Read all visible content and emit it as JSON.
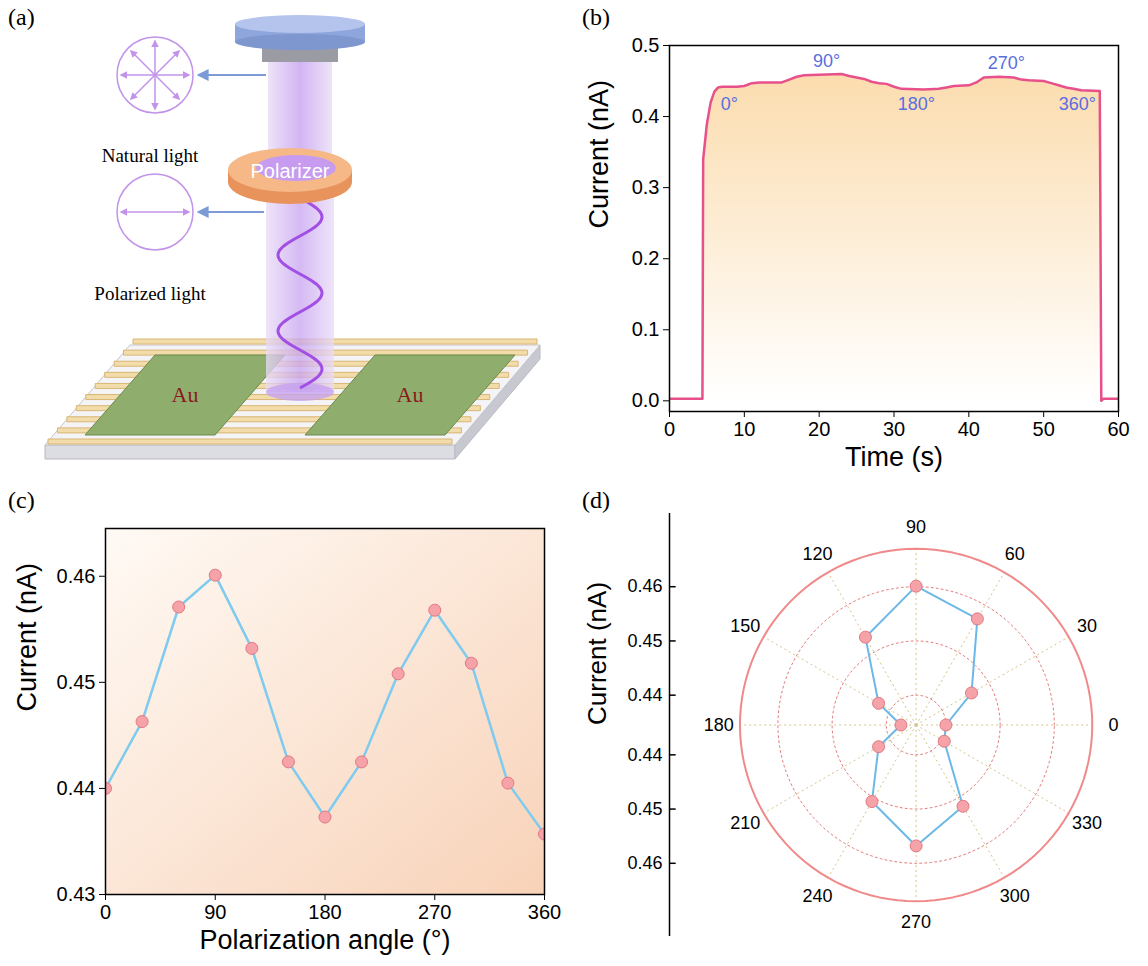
{
  "chart_data": [
    {
      "type": "diagram",
      "panel_label": "(a)",
      "labels": {
        "natural_light": "Natural light",
        "polarizer": "Polarizer",
        "polarized_light": "Polarized light",
        "electrodes": [
          "Au",
          "Au"
        ]
      }
    },
    {
      "type": "line",
      "panel_label": "(b)",
      "x_label": "Time (s)",
      "y_label": "Current (nA)",
      "x": [
        0,
        4.4,
        4.5,
        4.7,
        5,
        5.5,
        6,
        6.5,
        7,
        9,
        10,
        11,
        12,
        14,
        15,
        16,
        17,
        18,
        20,
        23,
        24,
        25,
        26,
        27,
        28,
        29,
        30,
        31,
        34,
        36,
        37,
        38,
        40,
        41,
        42,
        44,
        46,
        47,
        48,
        50,
        51,
        52,
        53,
        54,
        55,
        57.5,
        57.7,
        58,
        60
      ],
      "values": [
        0.003,
        0.003,
        0.34,
        0.36,
        0.39,
        0.42,
        0.435,
        0.441,
        0.442,
        0.442,
        0.443,
        0.447,
        0.448,
        0.448,
        0.448,
        0.452,
        0.456,
        0.458,
        0.459,
        0.46,
        0.457,
        0.455,
        0.453,
        0.449,
        0.447,
        0.446,
        0.442,
        0.439,
        0.438,
        0.439,
        0.441,
        0.443,
        0.444,
        0.448,
        0.455,
        0.456,
        0.455,
        0.452,
        0.451,
        0.45,
        0.447,
        0.444,
        0.441,
        0.439,
        0.437,
        0.436,
        0.0,
        0.003,
        0.003
      ],
      "color": "#e8508c",
      "xlim": [
        0,
        60
      ],
      "xticks": [
        0,
        10,
        20,
        30,
        40,
        50,
        60
      ],
      "ylim": [
        -0.015,
        0.5
      ],
      "yticks": [
        {
          "value": 0,
          "label": "0.0"
        },
        0.1,
        0.2,
        0.3,
        0.4,
        0.5
      ],
      "annotations": [
        {
          "text": "0°",
          "x": 8,
          "y": 0.418
        },
        {
          "text": "90°",
          "x": 21,
          "y": 0.478
        },
        {
          "text": "180°",
          "x": 33,
          "y": 0.418
        },
        {
          "text": "270°",
          "x": 45,
          "y": 0.475
        },
        {
          "text": "360°",
          "x": 54.5,
          "y": 0.418
        }
      ]
    },
    {
      "type": "line",
      "panel_label": "(c)",
      "x_label": "Polarization angle (°)",
      "y_label": "Current (nA)",
      "x": [
        0,
        30,
        60,
        90,
        120,
        150,
        180,
        210,
        240,
        270,
        300,
        330,
        360
      ],
      "values": [
        0.44,
        0.4463,
        0.4571,
        0.4601,
        0.4532,
        0.4425,
        0.4373,
        0.4425,
        0.4508,
        0.4568,
        0.4518,
        0.4405,
        0.4357
      ],
      "color": "#7ecbef",
      "marker": "circle",
      "xlim": [
        0,
        360
      ],
      "xticks": [
        0,
        90,
        180,
        270,
        360
      ],
      "ylim": [
        0.43,
        0.4645
      ],
      "yticks": [
        0.43,
        0.44,
        0.45,
        0.46
      ]
    },
    {
      "type": "polar",
      "panel_label": "(d)",
      "y_label": "Current (nA)",
      "x": [
        0,
        30,
        60,
        90,
        120,
        150,
        180,
        210,
        240,
        270,
        300,
        330
      ],
      "values": [
        0.44,
        0.4463,
        0.4571,
        0.4601,
        0.4532,
        0.4425,
        0.4373,
        0.4425,
        0.4508,
        0.4568,
        0.4518,
        0.4405
      ],
      "color": "#6cb8e6",
      "marker": "circle",
      "xlim": [
        0,
        360
      ],
      "xticks": [
        0,
        30,
        60,
        90,
        120,
        150,
        180,
        210,
        240,
        270,
        300,
        330
      ],
      "ylim": [
        0.4345,
        0.467
      ],
      "yticks": [
        0.44,
        0.45,
        0.46
      ]
    }
  ]
}
